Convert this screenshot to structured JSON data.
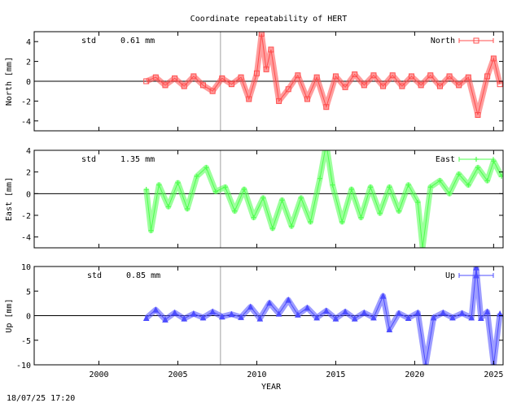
{
  "title": "Coordinate repeatability of HERT",
  "timestamp": "18/07/25 17:20",
  "chart_data": {
    "type": "scatter",
    "xlabel": "YEAR",
    "xlim": [
      1995.9,
      2025.6
    ],
    "xticks": [
      2000,
      2005,
      2010,
      2015,
      2020,
      2025
    ],
    "break_year": 2007.7,
    "panels": [
      {
        "name": "North",
        "ylabel": "North [mm]",
        "ylim": [
          -5,
          5
        ],
        "yticks": [
          -4,
          -2,
          0,
          2,
          4
        ],
        "std_label": "std",
        "std_value": "0.61 mm",
        "color": "#ff4d4d",
        "marker": "square",
        "series": [
          {
            "x": 2003.0,
            "y": 0.0
          },
          {
            "x": 2003.6,
            "y": 0.4
          },
          {
            "x": 2004.2,
            "y": -0.4
          },
          {
            "x": 2004.8,
            "y": 0.3
          },
          {
            "x": 2005.4,
            "y": -0.5
          },
          {
            "x": 2006.0,
            "y": 0.5
          },
          {
            "x": 2006.6,
            "y": -0.4
          },
          {
            "x": 2007.2,
            "y": -1.0
          },
          {
            "x": 2007.8,
            "y": 0.3
          },
          {
            "x": 2008.4,
            "y": -0.3
          },
          {
            "x": 2009.0,
            "y": 0.4
          },
          {
            "x": 2009.5,
            "y": -1.8
          },
          {
            "x": 2010.0,
            "y": 0.8
          },
          {
            "x": 2010.3,
            "y": 4.8
          },
          {
            "x": 2010.6,
            "y": 1.2
          },
          {
            "x": 2010.9,
            "y": 3.2
          },
          {
            "x": 2011.4,
            "y": -2.0
          },
          {
            "x": 2012.0,
            "y": -0.8
          },
          {
            "x": 2012.6,
            "y": 0.6
          },
          {
            "x": 2013.2,
            "y": -1.8
          },
          {
            "x": 2013.8,
            "y": 0.4
          },
          {
            "x": 2014.4,
            "y": -2.6
          },
          {
            "x": 2015.0,
            "y": 0.5
          },
          {
            "x": 2015.6,
            "y": -0.6
          },
          {
            "x": 2016.2,
            "y": 0.7
          },
          {
            "x": 2016.8,
            "y": -0.4
          },
          {
            "x": 2017.4,
            "y": 0.6
          },
          {
            "x": 2018.0,
            "y": -0.5
          },
          {
            "x": 2018.6,
            "y": 0.6
          },
          {
            "x": 2019.2,
            "y": -0.5
          },
          {
            "x": 2019.8,
            "y": 0.5
          },
          {
            "x": 2020.4,
            "y": -0.4
          },
          {
            "x": 2021.0,
            "y": 0.6
          },
          {
            "x": 2021.6,
            "y": -0.5
          },
          {
            "x": 2022.2,
            "y": 0.5
          },
          {
            "x": 2022.8,
            "y": -0.4
          },
          {
            "x": 2023.4,
            "y": 0.4
          },
          {
            "x": 2024.0,
            "y": -3.4
          },
          {
            "x": 2024.6,
            "y": 0.5
          },
          {
            "x": 2025.0,
            "y": 2.3
          },
          {
            "x": 2025.4,
            "y": -0.3
          }
        ]
      },
      {
        "name": "East",
        "ylabel": "East [mm]",
        "ylim": [
          -5,
          4
        ],
        "yticks": [
          -4,
          -2,
          0,
          2,
          4
        ],
        "std_label": "std",
        "std_value": "1.35 mm",
        "color": "#4dff4d",
        "marker": "plus",
        "series": [
          {
            "x": 2003.0,
            "y": 0.4
          },
          {
            "x": 2003.3,
            "y": -3.4
          },
          {
            "x": 2003.8,
            "y": 0.8
          },
          {
            "x": 2004.4,
            "y": -1.2
          },
          {
            "x": 2005.0,
            "y": 1.0
          },
          {
            "x": 2005.6,
            "y": -1.4
          },
          {
            "x": 2006.2,
            "y": 1.6
          },
          {
            "x": 2006.8,
            "y": 2.4
          },
          {
            "x": 2007.4,
            "y": 0.2
          },
          {
            "x": 2008.0,
            "y": 0.6
          },
          {
            "x": 2008.6,
            "y": -1.6
          },
          {
            "x": 2009.2,
            "y": 0.4
          },
          {
            "x": 2009.8,
            "y": -2.2
          },
          {
            "x": 2010.4,
            "y": -0.4
          },
          {
            "x": 2011.0,
            "y": -3.2
          },
          {
            "x": 2011.6,
            "y": -0.6
          },
          {
            "x": 2012.2,
            "y": -3.0
          },
          {
            "x": 2012.8,
            "y": -0.4
          },
          {
            "x": 2013.4,
            "y": -2.6
          },
          {
            "x": 2014.0,
            "y": 1.4
          },
          {
            "x": 2014.4,
            "y": 4.6
          },
          {
            "x": 2014.8,
            "y": 0.8
          },
          {
            "x": 2015.4,
            "y": -2.6
          },
          {
            "x": 2016.0,
            "y": 0.4
          },
          {
            "x": 2016.6,
            "y": -2.2
          },
          {
            "x": 2017.2,
            "y": 0.6
          },
          {
            "x": 2017.8,
            "y": -1.8
          },
          {
            "x": 2018.4,
            "y": 0.6
          },
          {
            "x": 2019.0,
            "y": -1.6
          },
          {
            "x": 2019.6,
            "y": 0.8
          },
          {
            "x": 2020.2,
            "y": -0.8
          },
          {
            "x": 2020.5,
            "y": -5.0
          },
          {
            "x": 2021.0,
            "y": 0.6
          },
          {
            "x": 2021.6,
            "y": 1.2
          },
          {
            "x": 2022.2,
            "y": 0.0
          },
          {
            "x": 2022.8,
            "y": 1.8
          },
          {
            "x": 2023.4,
            "y": 0.8
          },
          {
            "x": 2024.0,
            "y": 2.4
          },
          {
            "x": 2024.6,
            "y": 1.2
          },
          {
            "x": 2025.0,
            "y": 3.0
          },
          {
            "x": 2025.5,
            "y": 1.6
          }
        ]
      },
      {
        "name": "Up",
        "ylabel": "Up [mm]",
        "ylim": [
          -10,
          10
        ],
        "yticks": [
          -10,
          -5,
          0,
          5,
          10
        ],
        "std_label": "std",
        "std_value": "0.85 mm",
        "color": "#4d4dff",
        "marker": "triangle",
        "series": [
          {
            "x": 2003.0,
            "y": -0.5
          },
          {
            "x": 2003.6,
            "y": 1.2
          },
          {
            "x": 2004.2,
            "y": -0.8
          },
          {
            "x": 2004.8,
            "y": 0.6
          },
          {
            "x": 2005.4,
            "y": -0.6
          },
          {
            "x": 2006.0,
            "y": 0.4
          },
          {
            "x": 2006.6,
            "y": -0.4
          },
          {
            "x": 2007.2,
            "y": 0.8
          },
          {
            "x": 2007.8,
            "y": -0.2
          },
          {
            "x": 2008.4,
            "y": 0.3
          },
          {
            "x": 2009.0,
            "y": -0.3
          },
          {
            "x": 2009.6,
            "y": 1.8
          },
          {
            "x": 2010.2,
            "y": -0.6
          },
          {
            "x": 2010.8,
            "y": 2.6
          },
          {
            "x": 2011.4,
            "y": 0.4
          },
          {
            "x": 2012.0,
            "y": 3.2
          },
          {
            "x": 2012.6,
            "y": 0.2
          },
          {
            "x": 2013.2,
            "y": 1.6
          },
          {
            "x": 2013.8,
            "y": -0.4
          },
          {
            "x": 2014.4,
            "y": 1.0
          },
          {
            "x": 2015.0,
            "y": -0.6
          },
          {
            "x": 2015.6,
            "y": 0.8
          },
          {
            "x": 2016.2,
            "y": -0.6
          },
          {
            "x": 2016.8,
            "y": 0.6
          },
          {
            "x": 2017.4,
            "y": -0.4
          },
          {
            "x": 2018.0,
            "y": 4.0
          },
          {
            "x": 2018.4,
            "y": -2.8
          },
          {
            "x": 2019.0,
            "y": 0.5
          },
          {
            "x": 2019.6,
            "y": -0.5
          },
          {
            "x": 2020.2,
            "y": 0.6
          },
          {
            "x": 2020.7,
            "y": -10.0
          },
          {
            "x": 2021.2,
            "y": -0.4
          },
          {
            "x": 2021.8,
            "y": 0.6
          },
          {
            "x": 2022.4,
            "y": -0.4
          },
          {
            "x": 2023.0,
            "y": 0.5
          },
          {
            "x": 2023.6,
            "y": -0.4
          },
          {
            "x": 2023.9,
            "y": 9.8
          },
          {
            "x": 2024.2,
            "y": -0.5
          },
          {
            "x": 2024.6,
            "y": 0.8
          },
          {
            "x": 2025.0,
            "y": -10.0
          },
          {
            "x": 2025.4,
            "y": 0.4
          }
        ]
      }
    ]
  }
}
